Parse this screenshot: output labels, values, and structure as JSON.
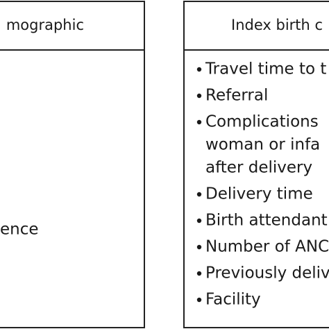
{
  "left_box": {
    "header": "mographic",
    "items": [
      "ence"
    ]
  },
  "right_box": {
    "header": "Index birth c",
    "items": [
      {
        "lines": [
          "Travel time to t"
        ]
      },
      {
        "lines": [
          "Referral"
        ]
      },
      {
        "lines": [
          "Complications",
          "woman or infa",
          "after delivery"
        ]
      },
      {
        "lines": [
          "Delivery time"
        ]
      },
      {
        "lines": [
          "Birth attendant"
        ]
      },
      {
        "lines": [
          "Number of ANC"
        ]
      },
      {
        "lines": [
          "Previously deliv"
        ]
      },
      {
        "lines": [
          "Facility"
        ]
      }
    ]
  }
}
